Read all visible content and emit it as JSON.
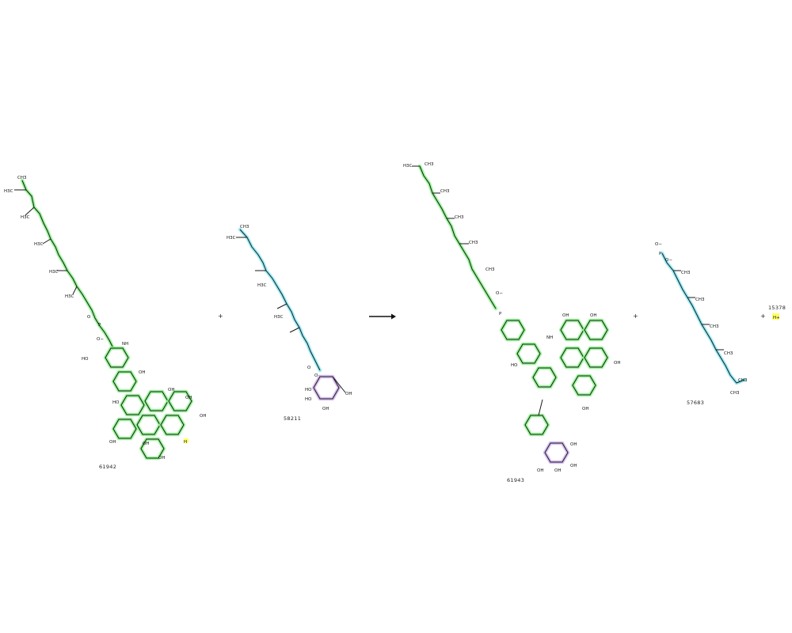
{
  "reaction": {
    "reactants": [
      {
        "id": "61942"
      },
      {
        "id": "58211"
      }
    ],
    "products": [
      {
        "id": "61943"
      },
      {
        "id": "57683"
      },
      {
        "id": "15378",
        "formula": "H+"
      }
    ],
    "plus_sign": "+",
    "arrow": "reaction-arrow"
  },
  "atom_labels": {
    "ch3": "CH3",
    "h3c": "H3C",
    "oh": "OH",
    "ho": "HO",
    "nh": "NH",
    "h": "H",
    "o": "O",
    "p": "P",
    "o_minus": "O−",
    "h_plus": "H+"
  },
  "colors": {
    "highlight_green": "#8ef58e",
    "highlight_cyan": "#8ee9f5",
    "highlight_purple": "#d4b8f2",
    "highlight_yellow": "#ffff66",
    "bond": "#1a1a1a"
  }
}
